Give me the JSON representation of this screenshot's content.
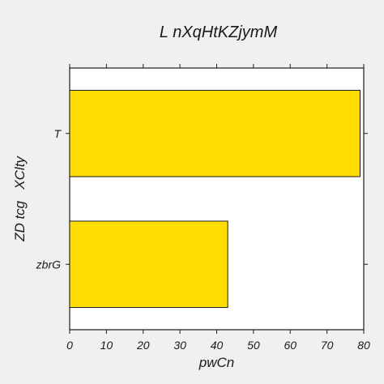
{
  "chart_data": {
    "type": "bar",
    "orientation": "horizontal",
    "title": "L nXqHtKZjymM",
    "xlabel": "pwCn",
    "ylabel": "ZD tcg   XClty",
    "categories": [
      "T",
      "zbrG"
    ],
    "values": [
      79,
      43
    ],
    "xlim": [
      0,
      80
    ],
    "xticks": [
      0,
      10,
      20,
      30,
      40,
      50,
      60,
      70,
      80
    ],
    "grid": false,
    "bar_color": "#ffdd00",
    "background": "#ffffff",
    "page_background": "#f0f0f0"
  }
}
